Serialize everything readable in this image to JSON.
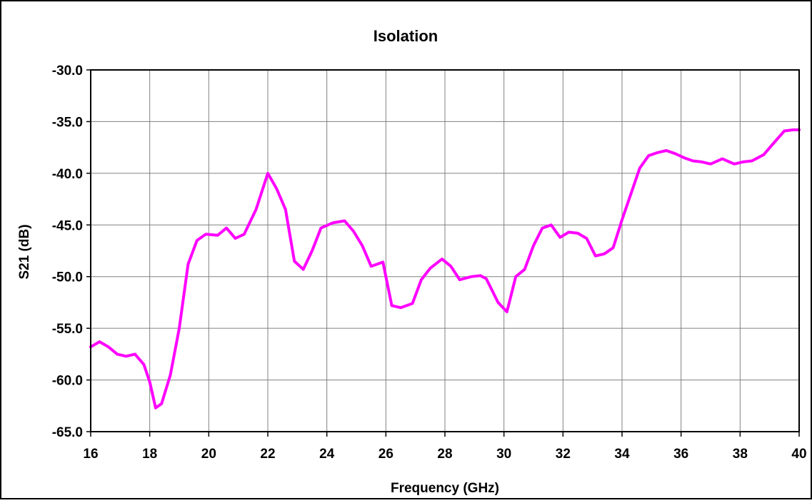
{
  "chart_data": {
    "type": "line",
    "title": "Isolation",
    "xlabel": "Frequency (GHz)",
    "ylabel": "S21 (dB)",
    "xlim": [
      16,
      40
    ],
    "ylim": [
      -65,
      -30
    ],
    "xticks": [
      "16",
      "18",
      "20",
      "22",
      "24",
      "26",
      "28",
      "30",
      "32",
      "34",
      "36",
      "38",
      "40"
    ],
    "yticks": [
      "-30.0",
      "-35.0",
      "-40.0",
      "-45.0",
      "-50.0",
      "-55.0",
      "-60.0",
      "-65.0"
    ],
    "grid": true,
    "legend": "none",
    "series": [
      {
        "color": "#ff00ff",
        "x": [
          16.0,
          16.3,
          16.6,
          16.9,
          17.2,
          17.5,
          17.8,
          18.0,
          18.2,
          18.4,
          18.7,
          19.0,
          19.3,
          19.6,
          19.9,
          20.3,
          20.6,
          20.9,
          21.2,
          21.6,
          22.0,
          22.3,
          22.6,
          22.9,
          23.2,
          23.5,
          23.8,
          24.2,
          24.6,
          24.9,
          25.2,
          25.5,
          25.9,
          26.2,
          26.5,
          26.9,
          27.2,
          27.5,
          27.9,
          28.2,
          28.5,
          28.9,
          29.2,
          29.4,
          29.8,
          30.1,
          30.4,
          30.7,
          31.0,
          31.3,
          31.6,
          31.9,
          32.2,
          32.5,
          32.8,
          33.1,
          33.4,
          33.7,
          34.0,
          34.3,
          34.6,
          34.9,
          35.2,
          35.5,
          35.8,
          36.1,
          36.4,
          36.7,
          37.0,
          37.4,
          37.8,
          38.1,
          38.4,
          38.8,
          39.1,
          39.5,
          39.8,
          40.0
        ],
        "y": [
          -56.8,
          -56.3,
          -56.8,
          -57.5,
          -57.7,
          -57.5,
          -58.5,
          -60.2,
          -62.7,
          -62.3,
          -59.5,
          -55.0,
          -48.8,
          -46.5,
          -45.9,
          -46.0,
          -45.3,
          -46.3,
          -45.9,
          -43.5,
          -40.0,
          -41.5,
          -43.5,
          -48.5,
          -49.3,
          -47.5,
          -45.3,
          -44.8,
          -44.6,
          -45.6,
          -47.0,
          -49.0,
          -48.6,
          -52.8,
          -53.0,
          -52.6,
          -50.3,
          -49.2,
          -48.3,
          -49.0,
          -50.3,
          -50.0,
          -49.9,
          -50.2,
          -52.5,
          -53.4,
          -50.0,
          -49.3,
          -47.0,
          -45.3,
          -45.0,
          -46.2,
          -45.7,
          -45.8,
          -46.3,
          -48.0,
          -47.8,
          -47.2,
          -44.5,
          -42.0,
          -39.5,
          -38.3,
          -38.0,
          -37.8,
          -38.1,
          -38.5,
          -38.8,
          -38.9,
          -39.1,
          -38.6,
          -39.1,
          -38.9,
          -38.8,
          -38.2,
          -37.2,
          -35.9,
          -35.8,
          -35.8
        ]
      }
    ]
  }
}
